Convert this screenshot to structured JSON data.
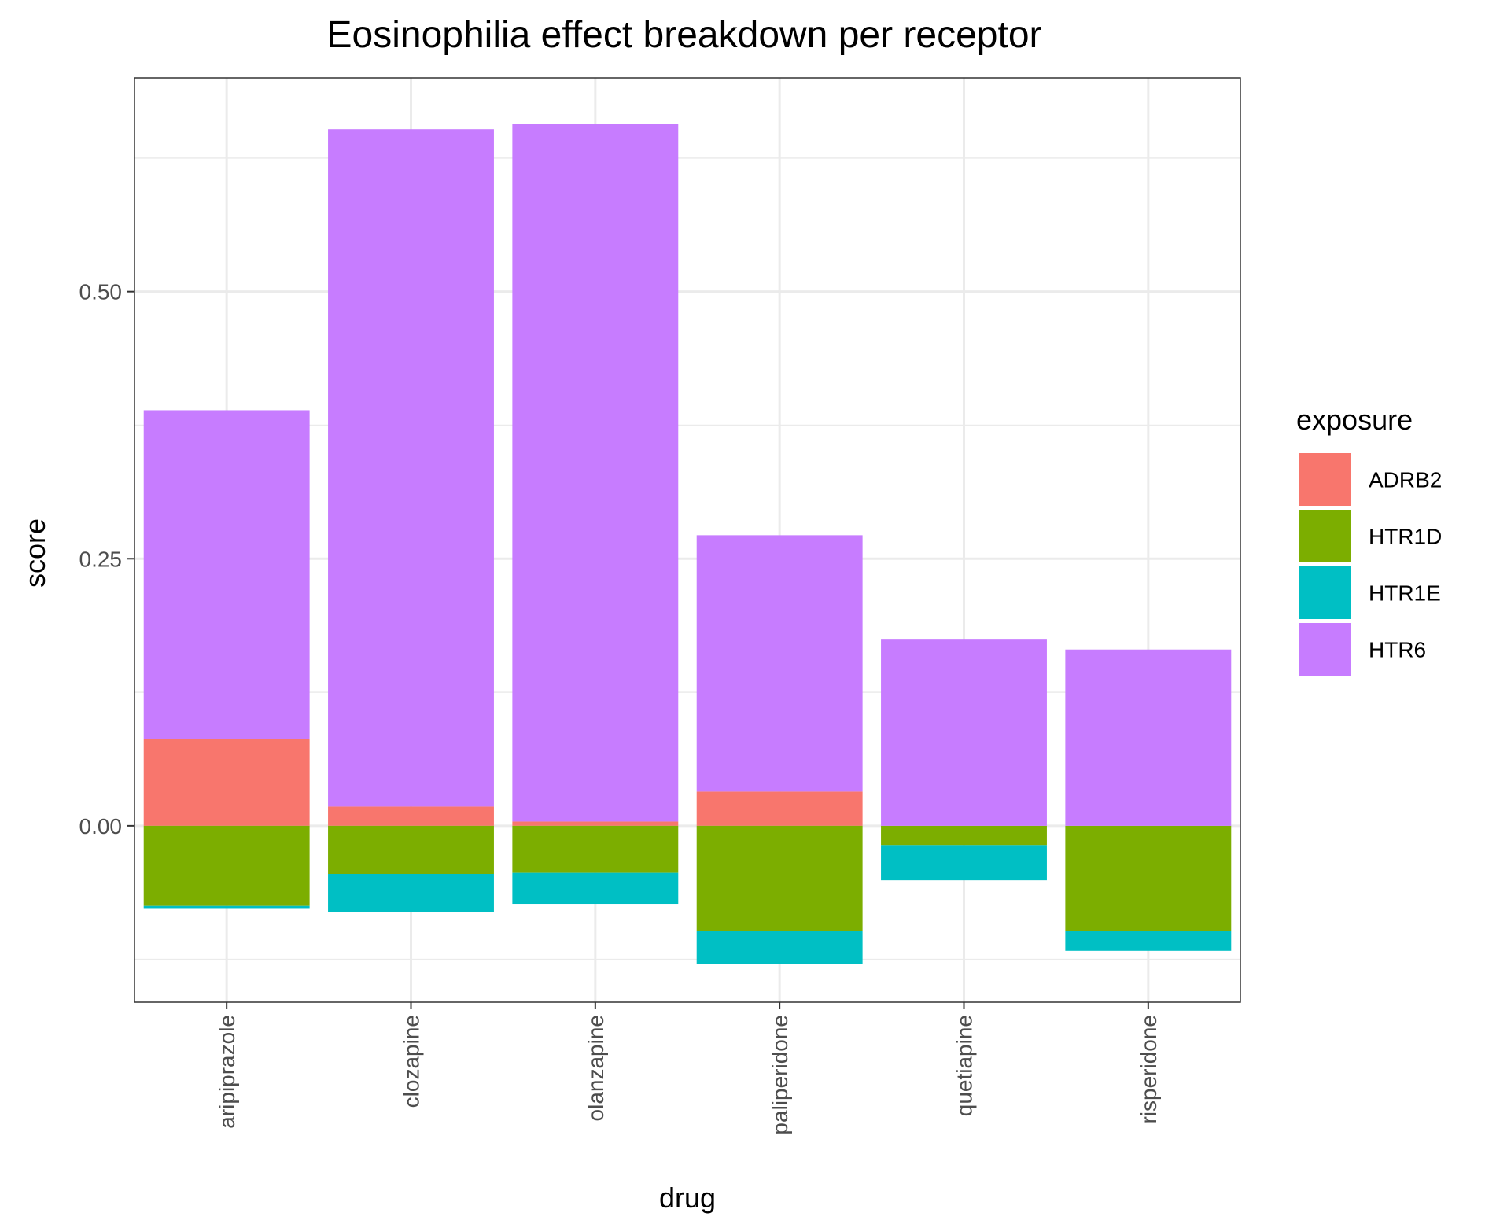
{
  "chart_data": {
    "type": "bar",
    "stacked": true,
    "title": "Eosinophilia effect breakdown per receptor",
    "xlabel": "drug",
    "ylabel": "score",
    "categories": [
      "aripiprazole",
      "clozapine",
      "olanzapine",
      "paliperidone",
      "quetiapine",
      "risperidone"
    ],
    "yticks": [
      0.0,
      0.25,
      0.5
    ],
    "ytick_labels": [
      "0.00",
      "0.25",
      "0.50"
    ],
    "ylim": [
      -0.165,
      0.7
    ],
    "grid": true,
    "legend": {
      "title": "exposure",
      "position": "right",
      "entries": [
        "ADRB2",
        "HTR1D",
        "HTR1E",
        "HTR6"
      ]
    },
    "series": [
      {
        "name": "ADRB2",
        "color": "#F8766D",
        "values": [
          0.081,
          0.018,
          0.004,
          0.032,
          0.0,
          0.0
        ]
      },
      {
        "name": "HTR1D",
        "color": "#7CAE00",
        "values": [
          -0.075,
          -0.045,
          -0.044,
          -0.098,
          -0.018,
          -0.098
        ]
      },
      {
        "name": "HTR1E",
        "color": "#00BFC4",
        "values": [
          -0.002,
          -0.036,
          -0.029,
          -0.031,
          -0.033,
          -0.019
        ]
      },
      {
        "name": "HTR6",
        "color": "#C77CFF",
        "values": [
          0.308,
          0.634,
          0.653,
          0.24,
          0.175,
          0.165
        ]
      }
    ]
  }
}
